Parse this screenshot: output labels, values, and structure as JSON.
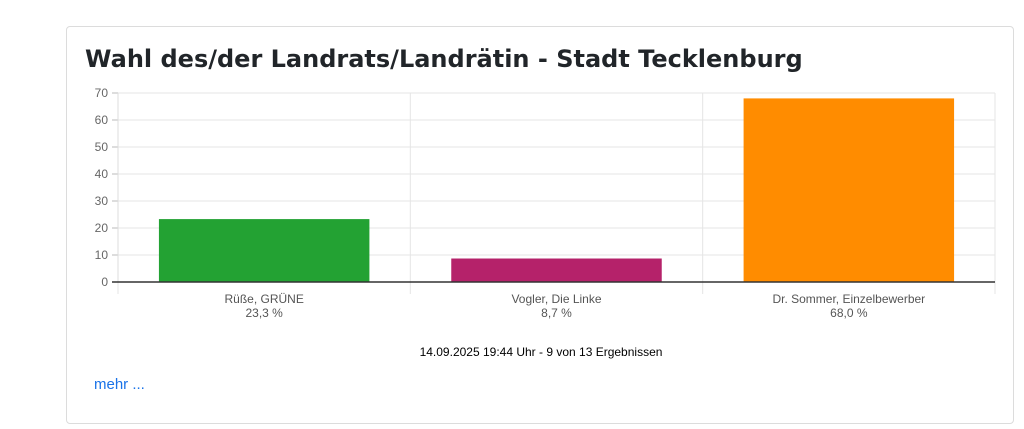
{
  "card": {
    "title": "Wahl des/der Landrats/Landrätin - Stadt Tecklenburg",
    "footnote": "14.09.2025 19:44 Uhr - 9 von 13 Ergebnissen",
    "more_link": "mehr ..."
  },
  "chart_data": {
    "type": "bar",
    "title": "Wahl des/der Landrats/Landrätin - Stadt Tecklenburg",
    "categories": [
      "Rüße, GRÜNE",
      "Vogler, Die Linke",
      "Dr. Sommer, Einzelbewerber"
    ],
    "value_labels": [
      "23,3 %",
      "8,7 %",
      "68,0 %"
    ],
    "values": [
      23.3,
      8.7,
      68.0
    ],
    "colors": [
      "#23a233",
      "#b5226a",
      "#ff8c00"
    ],
    "ylim": [
      0,
      70
    ],
    "yticks": [
      0,
      10,
      20,
      30,
      40,
      50,
      60,
      70
    ],
    "xlabel": "",
    "ylabel": "",
    "grid": true,
    "legend": "none"
  }
}
